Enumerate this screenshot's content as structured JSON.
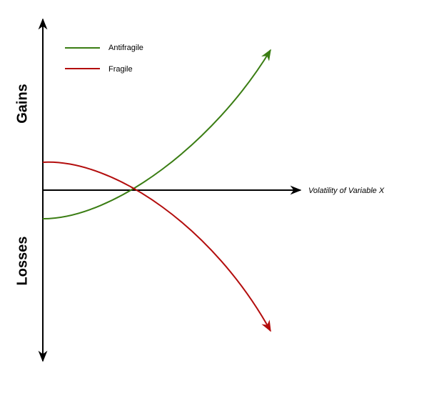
{
  "axes": {
    "y_top": "Gains",
    "y_bottom": "Losses",
    "x": "Volatility of Variable X"
  },
  "legend": {
    "items": [
      {
        "label": "Antifragile"
      },
      {
        "label": "Fragile"
      }
    ]
  }
}
